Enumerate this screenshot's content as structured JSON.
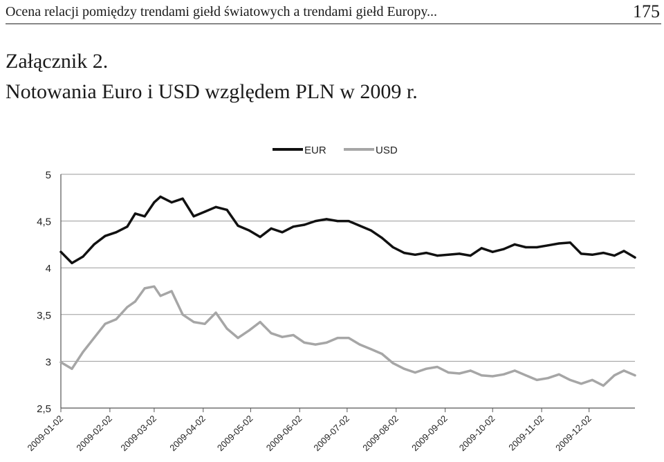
{
  "header": {
    "running_title": "Ocena relacji pomiędzy trendami giełd światowych a trendami giełd Europy...",
    "page_number": "175"
  },
  "section": {
    "annex_label": "Załącznik 2.",
    "title": "Notowania Euro i USD względem PLN w 2009 r."
  },
  "chart_data": {
    "type": "line",
    "title": "",
    "xlabel": "",
    "ylabel": "",
    "legend_placement": "top",
    "grid": "horizontal",
    "ylim": [
      2.5,
      5
    ],
    "y_ticks": [
      "2,5",
      "3",
      "3,5",
      "4",
      "4,5",
      "5"
    ],
    "x_tick_labels": [
      "2009-01-02",
      "2009-02-02",
      "2009-03-02",
      "2009-04-02",
      "2009-05-02",
      "2009-06-02",
      "2009-07-02",
      "2009-08-02",
      "2009-09-02",
      "2009-10-02",
      "2009-11-02",
      "2009-12-02"
    ],
    "x_dates": [
      "2009-01-02",
      "2009-01-09",
      "2009-01-16",
      "2009-01-23",
      "2009-01-30",
      "2009-02-06",
      "2009-02-13",
      "2009-02-18",
      "2009-02-24",
      "2009-03-02",
      "2009-03-06",
      "2009-03-13",
      "2009-03-20",
      "2009-03-27",
      "2009-04-03",
      "2009-04-10",
      "2009-04-17",
      "2009-04-24",
      "2009-05-01",
      "2009-05-08",
      "2009-05-15",
      "2009-05-22",
      "2009-05-29",
      "2009-06-05",
      "2009-06-12",
      "2009-06-19",
      "2009-06-26",
      "2009-07-03",
      "2009-07-10",
      "2009-07-17",
      "2009-07-24",
      "2009-07-31",
      "2009-08-07",
      "2009-08-14",
      "2009-08-21",
      "2009-08-28",
      "2009-09-04",
      "2009-09-11",
      "2009-09-18",
      "2009-09-25",
      "2009-10-02",
      "2009-10-09",
      "2009-10-16",
      "2009-10-23",
      "2009-10-30",
      "2009-11-06",
      "2009-11-13",
      "2009-11-20",
      "2009-11-27",
      "2009-12-04",
      "2009-12-11",
      "2009-12-18",
      "2009-12-24",
      "2009-12-31"
    ],
    "series": [
      {
        "name": "EUR",
        "color": "#111111",
        "values": [
          4.17,
          4.05,
          4.12,
          4.25,
          4.34,
          4.38,
          4.44,
          4.58,
          4.55,
          4.7,
          4.76,
          4.7,
          4.74,
          4.55,
          4.6,
          4.65,
          4.62,
          4.45,
          4.4,
          4.33,
          4.42,
          4.38,
          4.44,
          4.46,
          4.5,
          4.52,
          4.5,
          4.5,
          4.45,
          4.4,
          4.32,
          4.22,
          4.16,
          4.14,
          4.16,
          4.13,
          4.14,
          4.15,
          4.13,
          4.21,
          4.17,
          4.2,
          4.25,
          4.22,
          4.22,
          4.24,
          4.26,
          4.27,
          4.15,
          4.14,
          4.16,
          4.13,
          4.18,
          4.11
        ]
      },
      {
        "name": "USD",
        "color": "#a6a6a6",
        "values": [
          2.99,
          2.92,
          3.1,
          3.25,
          3.4,
          3.45,
          3.58,
          3.64,
          3.78,
          3.8,
          3.7,
          3.75,
          3.5,
          3.42,
          3.4,
          3.52,
          3.35,
          3.25,
          3.33,
          3.42,
          3.3,
          3.26,
          3.28,
          3.2,
          3.18,
          3.2,
          3.25,
          3.25,
          3.18,
          3.13,
          3.08,
          2.98,
          2.92,
          2.88,
          2.92,
          2.94,
          2.88,
          2.87,
          2.9,
          2.85,
          2.84,
          2.86,
          2.9,
          2.85,
          2.8,
          2.82,
          2.86,
          2.8,
          2.76,
          2.8,
          2.74,
          2.85,
          2.9,
          2.85
        ]
      }
    ]
  }
}
